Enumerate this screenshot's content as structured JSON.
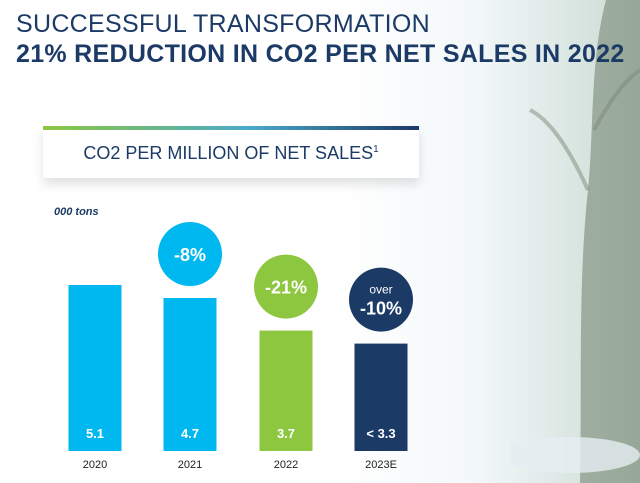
{
  "title_line1": "SUCCESSFUL TRANSFORMATION",
  "title_line2": "21% REDUCTION IN CO2 PER NET SALES IN 2022",
  "subtitle": "CO2 PER MILLION OF NET SALES",
  "subtitle_footnote": "1",
  "colors": {
    "navy": "#1b3a66",
    "cyan": "#00b8f0",
    "green": "#8dc63f"
  },
  "chart_data": {
    "type": "bar",
    "unit_label": "000 tons",
    "categories": [
      "2020",
      "2021",
      "2022",
      "2023E"
    ],
    "values": [
      5.1,
      4.7,
      3.7,
      3.3
    ],
    "value_labels": [
      "5.1",
      "4.7",
      "3.7",
      "< 3.3"
    ],
    "bar_colors": [
      "#00b8f0",
      "#00b8f0",
      "#8dc63f",
      "#1b3a66"
    ],
    "callouts": [
      null,
      {
        "lines": [
          "-8%"
        ],
        "color": "#00b8f0"
      },
      {
        "lines": [
          "-21%"
        ],
        "color": "#8dc63f"
      },
      {
        "lines": [
          "over",
          "-10%"
        ],
        "color": "#1b3a66"
      }
    ],
    "ylim": [
      0,
      5.1
    ]
  }
}
